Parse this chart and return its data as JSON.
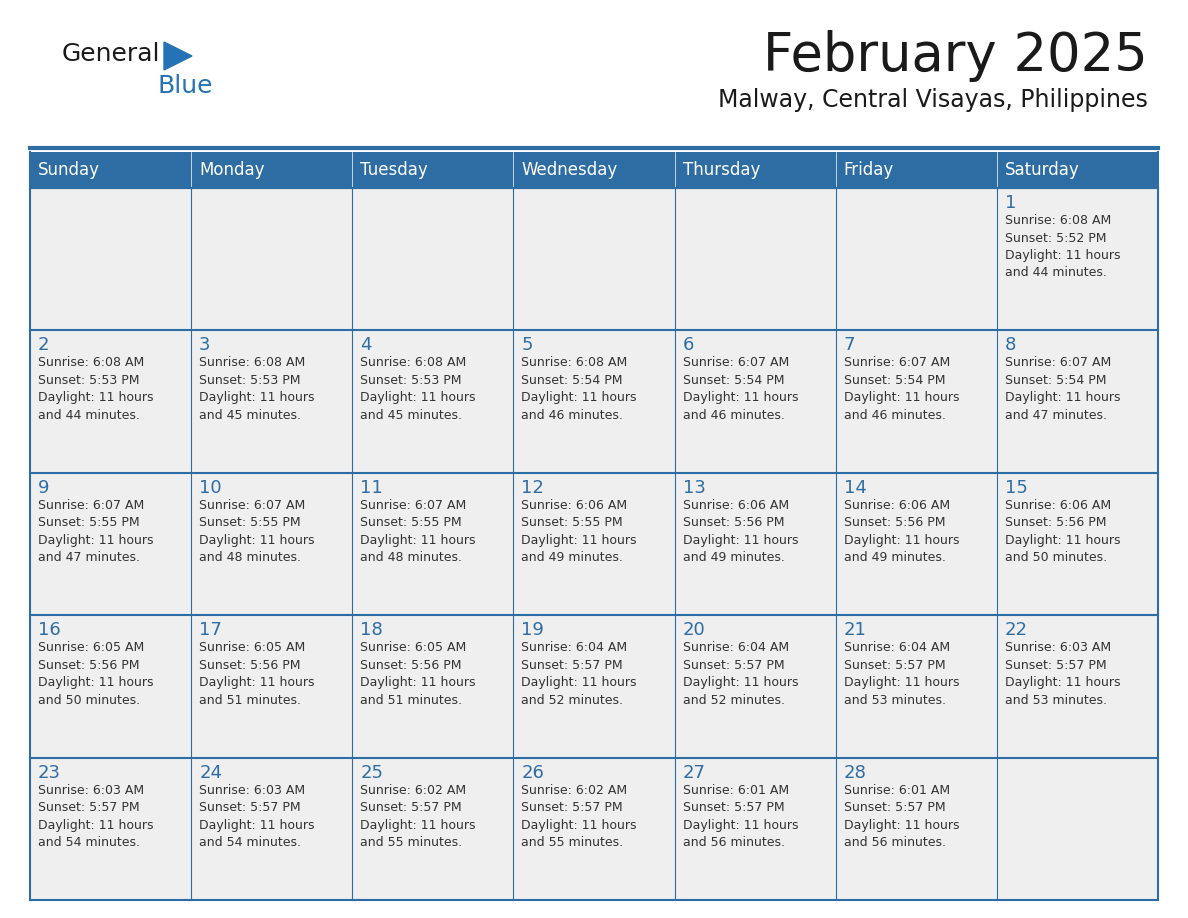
{
  "title": "February 2025",
  "subtitle": "Malway, Central Visayas, Philippines",
  "header_bg": "#2E6DA4",
  "header_text_color": "#FFFFFF",
  "cell_bg_odd": "#EFEFEF",
  "cell_bg_even": "#FFFFFF",
  "border_color": "#2E6DA4",
  "title_color": "#1a1a1a",
  "subtitle_color": "#1a1a1a",
  "day_number_color": "#2E6DA4",
  "cell_text_color": "#333333",
  "logo_black": "#1a1a1a",
  "logo_blue": "#2572B4",
  "days_of_week": [
    "Sunday",
    "Monday",
    "Tuesday",
    "Wednesday",
    "Thursday",
    "Friday",
    "Saturday"
  ],
  "weeks": [
    [
      null,
      null,
      null,
      null,
      null,
      null,
      1
    ],
    [
      2,
      3,
      4,
      5,
      6,
      7,
      8
    ],
    [
      9,
      10,
      11,
      12,
      13,
      14,
      15
    ],
    [
      16,
      17,
      18,
      19,
      20,
      21,
      22
    ],
    [
      23,
      24,
      25,
      26,
      27,
      28,
      null
    ]
  ],
  "cell_data": {
    "1": {
      "sunrise": "6:08 AM",
      "sunset": "5:52 PM",
      "daylight_hours": 11,
      "daylight_minutes": 44
    },
    "2": {
      "sunrise": "6:08 AM",
      "sunset": "5:53 PM",
      "daylight_hours": 11,
      "daylight_minutes": 44
    },
    "3": {
      "sunrise": "6:08 AM",
      "sunset": "5:53 PM",
      "daylight_hours": 11,
      "daylight_minutes": 45
    },
    "4": {
      "sunrise": "6:08 AM",
      "sunset": "5:53 PM",
      "daylight_hours": 11,
      "daylight_minutes": 45
    },
    "5": {
      "sunrise": "6:08 AM",
      "sunset": "5:54 PM",
      "daylight_hours": 11,
      "daylight_minutes": 46
    },
    "6": {
      "sunrise": "6:07 AM",
      "sunset": "5:54 PM",
      "daylight_hours": 11,
      "daylight_minutes": 46
    },
    "7": {
      "sunrise": "6:07 AM",
      "sunset": "5:54 PM",
      "daylight_hours": 11,
      "daylight_minutes": 46
    },
    "8": {
      "sunrise": "6:07 AM",
      "sunset": "5:54 PM",
      "daylight_hours": 11,
      "daylight_minutes": 47
    },
    "9": {
      "sunrise": "6:07 AM",
      "sunset": "5:55 PM",
      "daylight_hours": 11,
      "daylight_minutes": 47
    },
    "10": {
      "sunrise": "6:07 AM",
      "sunset": "5:55 PM",
      "daylight_hours": 11,
      "daylight_minutes": 48
    },
    "11": {
      "sunrise": "6:07 AM",
      "sunset": "5:55 PM",
      "daylight_hours": 11,
      "daylight_minutes": 48
    },
    "12": {
      "sunrise": "6:06 AM",
      "sunset": "5:55 PM",
      "daylight_hours": 11,
      "daylight_minutes": 49
    },
    "13": {
      "sunrise": "6:06 AM",
      "sunset": "5:56 PM",
      "daylight_hours": 11,
      "daylight_minutes": 49
    },
    "14": {
      "sunrise": "6:06 AM",
      "sunset": "5:56 PM",
      "daylight_hours": 11,
      "daylight_minutes": 49
    },
    "15": {
      "sunrise": "6:06 AM",
      "sunset": "5:56 PM",
      "daylight_hours": 11,
      "daylight_minutes": 50
    },
    "16": {
      "sunrise": "6:05 AM",
      "sunset": "5:56 PM",
      "daylight_hours": 11,
      "daylight_minutes": 50
    },
    "17": {
      "sunrise": "6:05 AM",
      "sunset": "5:56 PM",
      "daylight_hours": 11,
      "daylight_minutes": 51
    },
    "18": {
      "sunrise": "6:05 AM",
      "sunset": "5:56 PM",
      "daylight_hours": 11,
      "daylight_minutes": 51
    },
    "19": {
      "sunrise": "6:04 AM",
      "sunset": "5:57 PM",
      "daylight_hours": 11,
      "daylight_minutes": 52
    },
    "20": {
      "sunrise": "6:04 AM",
      "sunset": "5:57 PM",
      "daylight_hours": 11,
      "daylight_minutes": 52
    },
    "21": {
      "sunrise": "6:04 AM",
      "sunset": "5:57 PM",
      "daylight_hours": 11,
      "daylight_minutes": 53
    },
    "22": {
      "sunrise": "6:03 AM",
      "sunset": "5:57 PM",
      "daylight_hours": 11,
      "daylight_minutes": 53
    },
    "23": {
      "sunrise": "6:03 AM",
      "sunset": "5:57 PM",
      "daylight_hours": 11,
      "daylight_minutes": 54
    },
    "24": {
      "sunrise": "6:03 AM",
      "sunset": "5:57 PM",
      "daylight_hours": 11,
      "daylight_minutes": 54
    },
    "25": {
      "sunrise": "6:02 AM",
      "sunset": "5:57 PM",
      "daylight_hours": 11,
      "daylight_minutes": 55
    },
    "26": {
      "sunrise": "6:02 AM",
      "sunset": "5:57 PM",
      "daylight_hours": 11,
      "daylight_minutes": 55
    },
    "27": {
      "sunrise": "6:01 AM",
      "sunset": "5:57 PM",
      "daylight_hours": 11,
      "daylight_minutes": 56
    },
    "28": {
      "sunrise": "6:01 AM",
      "sunset": "5:57 PM",
      "daylight_hours": 11,
      "daylight_minutes": 56
    }
  }
}
